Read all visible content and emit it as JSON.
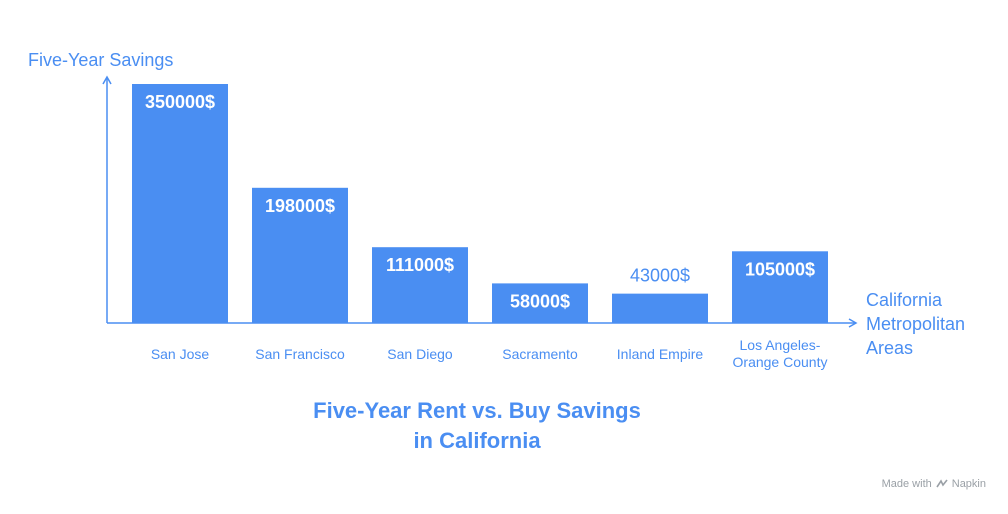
{
  "chart_data": {
    "type": "bar",
    "title": [
      "Five-Year Rent vs. Buy Savings",
      "in California"
    ],
    "ylabel": "Five-Year Savings",
    "xlabel": [
      "California",
      "Metropolitan",
      "Areas"
    ],
    "categories": [
      [
        "San Jose"
      ],
      [
        "San Francisco"
      ],
      [
        "San Diego"
      ],
      [
        "Sacramento"
      ],
      [
        "Inland Empire"
      ],
      [
        "Los Angeles-",
        "Orange County"
      ]
    ],
    "values": [
      350000,
      198000,
      111000,
      58000,
      43000,
      105000
    ],
    "value_labels": [
      "350000$",
      "198000$",
      "111000$",
      "58000$",
      "43000$",
      "105000$"
    ],
    "ylim": [
      0,
      350000
    ],
    "grid": false,
    "colors": {
      "bar": "#4a8ef2",
      "inner_label": "#ffffff",
      "outer_label": "#4a8ef2",
      "axis": "#4a8ef2",
      "category": "#4a8ef2"
    }
  },
  "footer": {
    "made_with": "Made with",
    "brand": "Napkin"
  }
}
